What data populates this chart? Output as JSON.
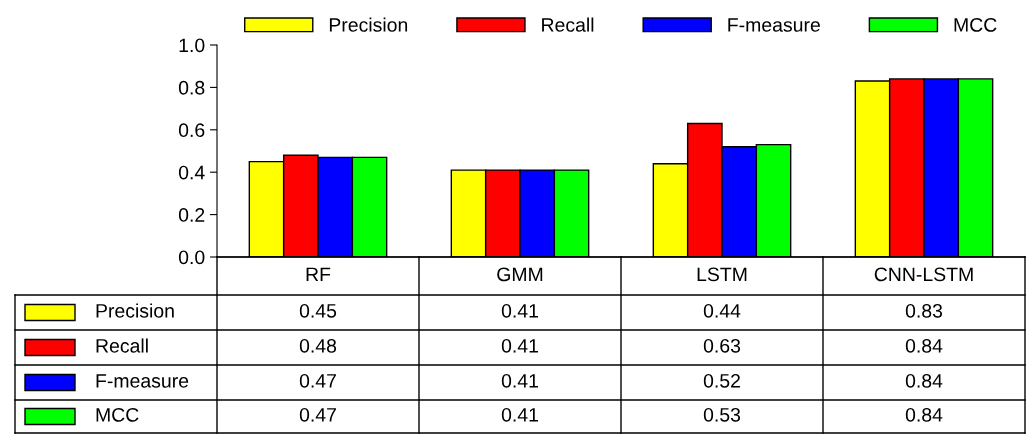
{
  "chart_data": {
    "type": "bar",
    "categories": [
      "RF",
      "GMM",
      "LSTM",
      "CNN-LSTM"
    ],
    "series": [
      {
        "name": "Precision",
        "color": "#ffff00",
        "values": [
          0.45,
          0.41,
          0.44,
          0.83
        ]
      },
      {
        "name": "Recall",
        "color": "#ff0000",
        "values": [
          0.48,
          0.41,
          0.63,
          0.84
        ]
      },
      {
        "name": "F-measure",
        "color": "#0000ff",
        "values": [
          0.47,
          0.41,
          0.52,
          0.84
        ]
      },
      {
        "name": "MCC",
        "color": "#00ff00",
        "values": [
          0.47,
          0.41,
          0.53,
          0.84
        ]
      }
    ],
    "ylim": [
      0,
      1.0
    ],
    "yticks": [
      {
        "value": 0,
        "label": "0.0"
      },
      0.2,
      0.4,
      0.6,
      0.8,
      {
        "value": 1,
        "label": "1.0"
      }
    ],
    "data_labels": true,
    "legend": "top",
    "grid": false
  }
}
